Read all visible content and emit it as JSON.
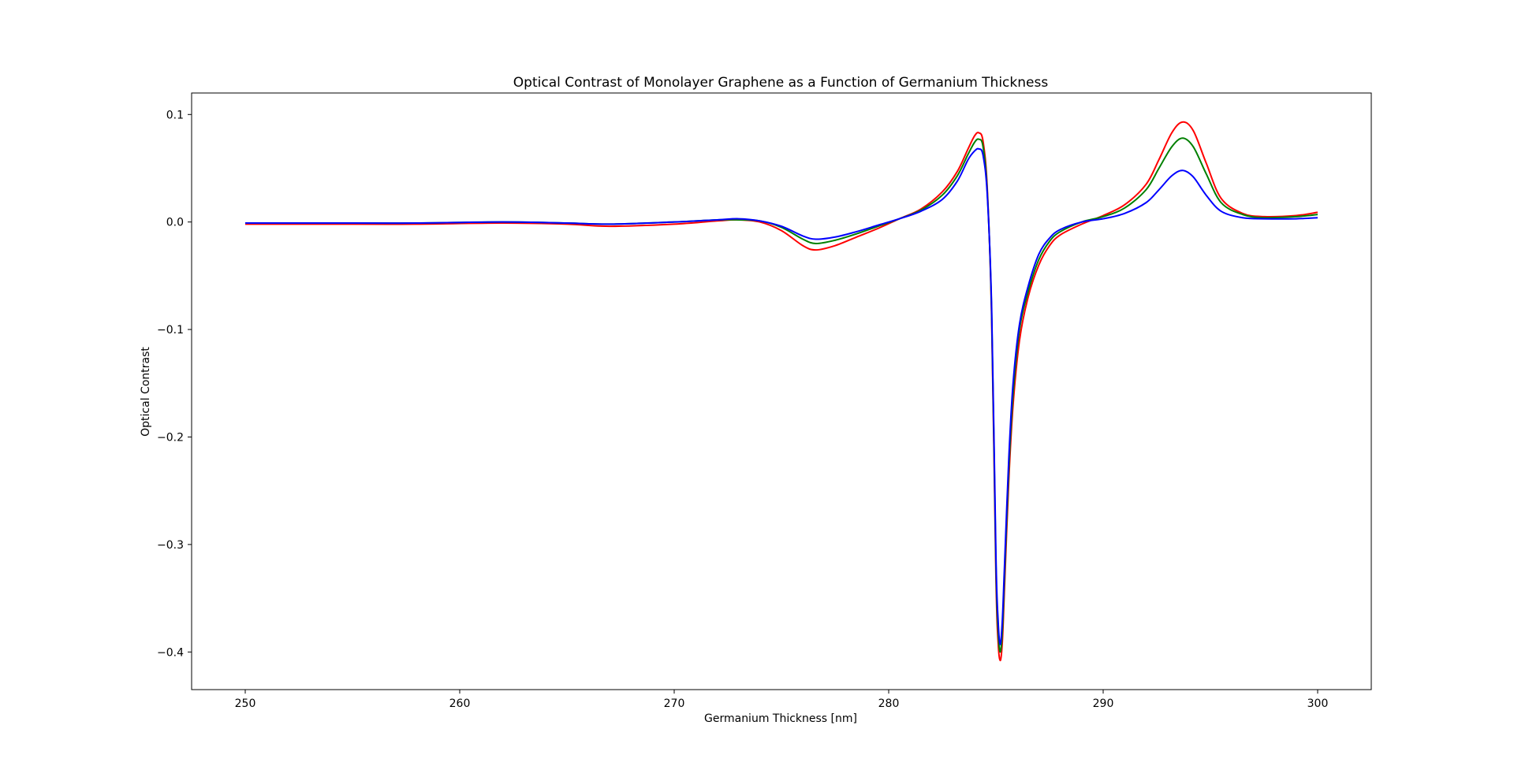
{
  "chart_data": {
    "type": "line",
    "title": "Optical Contrast of Monolayer Graphene as a Function of Germanium Thickness",
    "xlabel": "Germanium Thickness [nm]",
    "ylabel": "Optical Contrast",
    "xlim": [
      247.5,
      302.5
    ],
    "ylim": [
      -0.435,
      0.12
    ],
    "xticks": [
      250,
      260,
      270,
      280,
      290,
      300
    ],
    "yticks": [
      0.1,
      0.0,
      -0.1,
      -0.2,
      -0.3,
      -0.4
    ],
    "xtick_labels": [
      "250",
      "260",
      "270",
      "280",
      "290",
      "300"
    ],
    "ytick_labels": [
      "0.1",
      "0.0",
      "−0.1",
      "−0.2",
      "−0.3",
      "−0.4"
    ],
    "grid": false,
    "legend": "none",
    "x": [
      250,
      255,
      258,
      262,
      265,
      267,
      270,
      272,
      273,
      274,
      275,
      276,
      276.6,
      277.5,
      278.5,
      279.5,
      280.5,
      281.5,
      282.5,
      283.2,
      283.7,
      284.0,
      284.2,
      284.4,
      284.6,
      284.8,
      285.0,
      285.1,
      285.2,
      285.3,
      285.4,
      285.6,
      285.8,
      286.1,
      286.5,
      287,
      287.5,
      288,
      289,
      290,
      291,
      292,
      292.6,
      293.2,
      293.7,
      294.2,
      294.8,
      295.5,
      296.5,
      297.5,
      299,
      300
    ],
    "series": [
      {
        "color": "#ff0000",
        "values": [
          -0.002,
          -0.002,
          -0.002,
          -0.001,
          -0.002,
          -0.004,
          -0.002,
          0.001,
          0.002,
          0.0,
          -0.008,
          -0.022,
          -0.026,
          -0.022,
          -0.014,
          -0.006,
          0.003,
          0.012,
          0.028,
          0.047,
          0.068,
          0.08,
          0.083,
          0.075,
          0.03,
          -0.09,
          -0.33,
          -0.39,
          -0.408,
          -0.39,
          -0.34,
          -0.24,
          -0.17,
          -0.11,
          -0.07,
          -0.04,
          -0.022,
          -0.012,
          -0.002,
          0.006,
          0.016,
          0.035,
          0.058,
          0.083,
          0.093,
          0.085,
          0.055,
          0.022,
          0.008,
          0.005,
          0.006,
          0.009
        ]
      },
      {
        "color": "#008000",
        "values": [
          -0.001,
          -0.001,
          -0.001,
          0.0,
          -0.001,
          -0.002,
          0.0,
          0.002,
          0.002,
          0.001,
          -0.005,
          -0.016,
          -0.02,
          -0.017,
          -0.011,
          -0.004,
          0.003,
          0.011,
          0.025,
          0.043,
          0.063,
          0.074,
          0.077,
          0.07,
          0.027,
          -0.085,
          -0.32,
          -0.38,
          -0.4,
          -0.38,
          -0.33,
          -0.23,
          -0.16,
          -0.1,
          -0.065,
          -0.035,
          -0.018,
          -0.009,
          0.0,
          0.005,
          0.013,
          0.03,
          0.05,
          0.07,
          0.078,
          0.07,
          0.045,
          0.018,
          0.007,
          0.004,
          0.005,
          0.007
        ]
      },
      {
        "color": "#0000ff",
        "values": [
          -0.001,
          -0.001,
          -0.001,
          0.0,
          -0.001,
          -0.002,
          0.0,
          0.002,
          0.003,
          0.001,
          -0.004,
          -0.013,
          -0.016,
          -0.014,
          -0.009,
          -0.003,
          0.003,
          0.01,
          0.021,
          0.038,
          0.058,
          0.066,
          0.068,
          0.062,
          0.024,
          -0.08,
          -0.31,
          -0.37,
          -0.393,
          -0.37,
          -0.32,
          -0.22,
          -0.15,
          -0.095,
          -0.06,
          -0.03,
          -0.015,
          -0.007,
          0.0,
          0.003,
          0.008,
          0.018,
          0.03,
          0.043,
          0.048,
          0.042,
          0.025,
          0.01,
          0.004,
          0.003,
          0.003,
          0.004
        ]
      }
    ]
  }
}
